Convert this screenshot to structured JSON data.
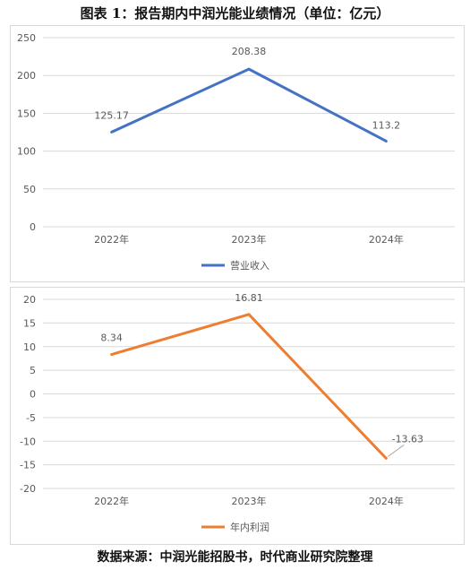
{
  "title": "图表 1：报告期内中润光能业绩情况（单位：亿元）",
  "source": "数据来源：中润光能招股书，时代商业研究院整理",
  "chart_data": [
    {
      "type": "line",
      "categories": [
        "2022年",
        "2023年",
        "2024年"
      ],
      "series": [
        {
          "name": "营业收入",
          "values": [
            125.17,
            208.38,
            113.2
          ],
          "labels": [
            "125.17",
            "208.38",
            "113.2"
          ],
          "color": "#4472c4"
        }
      ],
      "yticks": [
        "0",
        "50",
        "100",
        "150",
        "200",
        "250"
      ],
      "ylim": [
        0,
        250
      ],
      "grid": true,
      "legend": "bottom"
    },
    {
      "type": "line",
      "categories": [
        "2022年",
        "2023年",
        "2024年"
      ],
      "series": [
        {
          "name": "年内利润",
          "values": [
            8.34,
            16.81,
            -13.63
          ],
          "labels": [
            "8.34",
            "16.81",
            "-13.63"
          ],
          "color": "#ed7d31"
        }
      ],
      "yticks": [
        "-20",
        "-15",
        "-10",
        "-5",
        "0",
        "5",
        "10",
        "15",
        "20"
      ],
      "ylim": [
        -20,
        20
      ],
      "grid": true,
      "legend": "bottom"
    }
  ]
}
